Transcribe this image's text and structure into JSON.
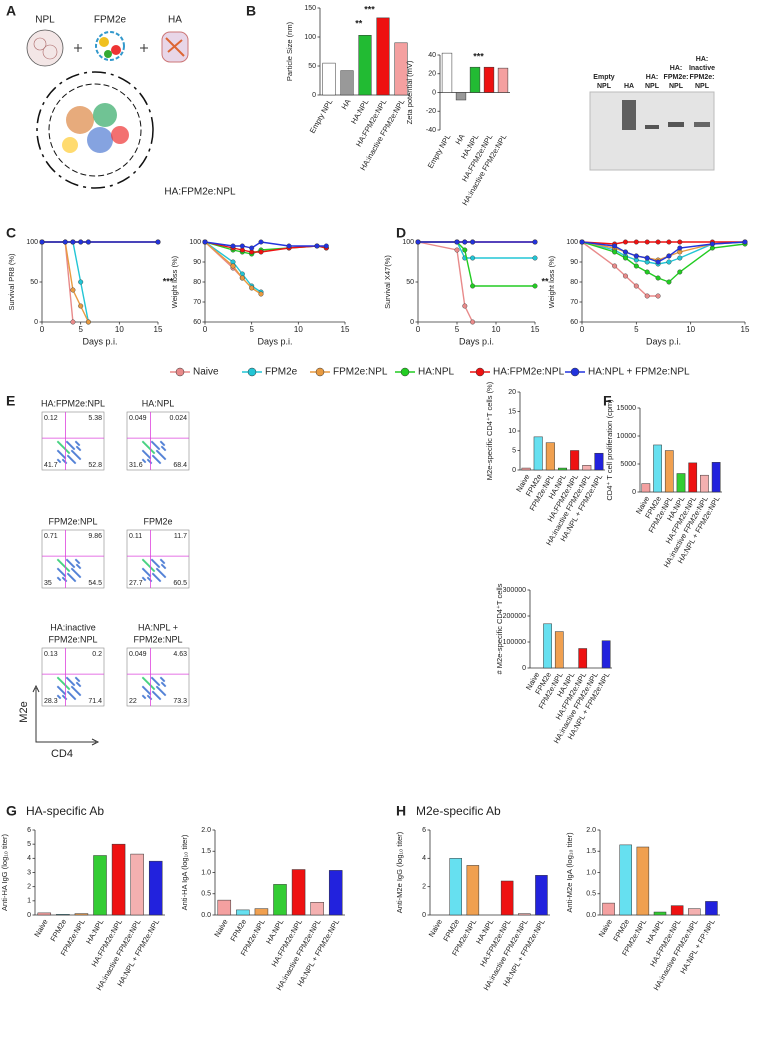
{
  "panel_letters": [
    "A",
    "B",
    "C",
    "D",
    "E",
    "F",
    "G",
    "H"
  ],
  "section_titles": [
    "HA-specific Ab",
    "M2e-specific Ab"
  ],
  "panel_a": {
    "labels": [
      "NPL",
      "FPM2e",
      "HA"
    ],
    "complex": "HA:FPM2e:NPL"
  },
  "gel_labels": [
    [
      "Empty",
      "NPL"
    ],
    [
      "HA"
    ],
    [
      "HA:",
      "NPL"
    ],
    [
      "HA:",
      "FPM2e:",
      "NPL"
    ],
    [
      "HA:",
      "Inactive",
      "FPM2e:",
      "NPL"
    ]
  ],
  "flow_axes": {
    "y": "M2e",
    "x": "CD4"
  },
  "flow_plots": [
    {
      "title": [
        "HA:FPM2e:NPL"
      ],
      "quadrants": [
        0.12,
        5.38,
        41.7,
        52.8
      ]
    },
    {
      "title": [
        "HA:NPL"
      ],
      "quadrants": [
        0.049,
        0.024,
        31.6,
        68.4
      ]
    },
    {
      "title": [
        "FPM2e:NPL"
      ],
      "quadrants": [
        0.71,
        9.86,
        35,
        54.5
      ]
    },
    {
      "title": [
        "FPM2e"
      ],
      "quadrants": [
        0.11,
        11.7,
        27.7,
        60.5
      ]
    },
    {
      "title": [
        "HA:inactive",
        "FPM2e:NPL"
      ],
      "quadrants": [
        0.13,
        0.2,
        28.3,
        71.4
      ]
    },
    {
      "title": [
        "HA:NPL +",
        "FPM2e:NPL"
      ],
      "quadrants": [
        0.049,
        4.63,
        22,
        73.3
      ]
    }
  ],
  "chart_data": [
    {
      "type": "bar",
      "y_label": "Particle Size (nm)",
      "categories": [
        "Empty NPL",
        "HA",
        "HA:NPL",
        "HA:FPM2e:NPL",
        "HA:inactive FPM2e:NPL"
      ],
      "values": [
        55,
        42,
        103,
        133,
        90
      ],
      "colors": [
        "#ffffff",
        "#999999",
        "#22bb33",
        "#ee1111",
        "#f4a0a0"
      ],
      "ylim": [
        0,
        150
      ],
      "yticks": [
        0,
        50,
        100,
        150
      ],
      "annotations": [
        "***",
        "**"
      ]
    },
    {
      "type": "bar",
      "y_label": "Zeta potential (mV)",
      "categories": [
        "Empty NPL",
        "HA",
        "HA:NPL",
        "HA:FPM2e:NPL",
        "HA:inactive FPM2e:NPL"
      ],
      "values": [
        42,
        -8,
        27,
        27,
        26
      ],
      "colors": [
        "#ffffff",
        "#999999",
        "#22bb33",
        "#ee1111",
        "#f4a0a0"
      ],
      "ylim": [
        -40,
        40
      ],
      "yticks": [
        -40,
        -20,
        0,
        20,
        40
      ],
      "annotations": [
        "***"
      ]
    },
    {
      "type": "line",
      "y_label": "Survival PR8 (%)",
      "x_label": "Days p.i.",
      "x": [
        0,
        3,
        4,
        5,
        6,
        15
      ],
      "xlim": [
        0,
        15
      ],
      "xticks": [
        0,
        5,
        10,
        15
      ],
      "ylim": [
        0,
        100
      ],
      "yticks": [
        0,
        50,
        100
      ],
      "annotations": [
        "***"
      ],
      "series": [
        {
          "name": "Naive",
          "color": "#e88a8a",
          "values": [
            100,
            100,
            0,
            null,
            null,
            null
          ]
        },
        {
          "name": "FPM2e",
          "color": "#22c5d5",
          "values": [
            100,
            100,
            100,
            50,
            0,
            null
          ]
        },
        {
          "name": "FPM2e:NPL",
          "color": "#e89a40",
          "values": [
            100,
            100,
            40,
            20,
            0,
            null
          ]
        },
        {
          "name": "HA:NPL",
          "color": "#22cc22",
          "values": [
            100,
            100,
            100,
            100,
            100,
            100
          ]
        },
        {
          "name": "HA:FPM2e:NPL",
          "color": "#ee1111",
          "values": [
            100,
            100,
            100,
            100,
            100,
            100
          ]
        },
        {
          "name": "HA:NPL + FPM2e:NPL",
          "color": "#2233dd",
          "values": [
            100,
            100,
            100,
            100,
            100,
            100
          ]
        }
      ]
    },
    {
      "type": "line",
      "y_label": "Weight loss (%)",
      "x_label": "Days p.i.",
      "x": [
        0,
        3,
        4,
        5,
        6,
        9,
        12,
        13
      ],
      "xlim": [
        0,
        15
      ],
      "xticks": [
        0,
        5,
        10,
        15
      ],
      "ylim": [
        60,
        100
      ],
      "yticks": [
        60,
        70,
        80,
        90,
        100
      ],
      "series": [
        {
          "color": "#e88a8a",
          "values": [
            100,
            87,
            82,
            null,
            null,
            null,
            null,
            null
          ]
        },
        {
          "color": "#22c5d5",
          "values": [
            100,
            90,
            84,
            78,
            75,
            null,
            null,
            null
          ]
        },
        {
          "color": "#e89a40",
          "values": [
            100,
            88,
            82,
            77,
            74,
            null,
            null,
            null
          ]
        },
        {
          "color": "#22cc22",
          "values": [
            100,
            96,
            95,
            94,
            96,
            97,
            98,
            97
          ]
        },
        {
          "color": "#ee1111",
          "values": [
            100,
            97,
            96,
            95,
            95,
            97,
            98,
            97
          ]
        },
        {
          "color": "#2233dd",
          "values": [
            100,
            98,
            98,
            97,
            100,
            98,
            98,
            98
          ]
        }
      ]
    },
    {
      "type": "line",
      "y_label": "Survival X47(%)",
      "x_label": "Days p.i.",
      "x": [
        0,
        5,
        6,
        7,
        15
      ],
      "xlim": [
        0,
        15
      ],
      "xticks": [
        0,
        5,
        10,
        15
      ],
      "ylim": [
        0,
        100
      ],
      "yticks": [
        0,
        50,
        100
      ],
      "annotations": [
        "**"
      ],
      "series": [
        {
          "color": "#e88a8a",
          "values": [
            100,
            90,
            20,
            0,
            null
          ]
        },
        {
          "color": "#22c5d5",
          "values": [
            100,
            100,
            80,
            80,
            80
          ]
        },
        {
          "color": "#e89a40",
          "values": [
            100,
            100,
            100,
            100,
            100
          ]
        },
        {
          "color": "#22cc22",
          "values": [
            100,
            100,
            90,
            45,
            45
          ]
        },
        {
          "color": "#ee1111",
          "values": [
            100,
            100,
            100,
            100,
            100
          ]
        },
        {
          "color": "#2233dd",
          "values": [
            100,
            100,
            100,
            100,
            100
          ]
        }
      ]
    },
    {
      "type": "line",
      "y_label": "Weight loss (%)",
      "x_label": "Days p.i.",
      "x": [
        0,
        3,
        4,
        5,
        6,
        7,
        8,
        9,
        12,
        15
      ],
      "xlim": [
        0,
        15
      ],
      "xticks": [
        0,
        5,
        10,
        15
      ],
      "ylim": [
        60,
        100
      ],
      "yticks": [
        60,
        70,
        80,
        90,
        100
      ],
      "series": [
        {
          "color": "#e88a8a",
          "values": [
            100,
            88,
            83,
            78,
            73,
            73,
            null,
            null,
            null,
            null
          ]
        },
        {
          "color": "#22c5d5",
          "values": [
            100,
            96,
            93,
            91,
            90,
            89,
            90,
            92,
            99,
            100
          ]
        },
        {
          "color": "#e89a40",
          "values": [
            100,
            97,
            95,
            93,
            92,
            91,
            93,
            95,
            99,
            100
          ]
        },
        {
          "color": "#22cc22",
          "values": [
            100,
            95,
            92,
            88,
            85,
            82,
            80,
            85,
            97,
            99
          ]
        },
        {
          "color": "#ee1111",
          "values": [
            100,
            99,
            100,
            100,
            100,
            100,
            100,
            100,
            100,
            100
          ]
        },
        {
          "color": "#2233dd",
          "values": [
            100,
            98,
            95,
            93,
            92,
            90,
            93,
            97,
            99,
            100
          ]
        }
      ]
    },
    {
      "type": "bar",
      "y_label": "M2e-specific CD4⁺T cells (%)",
      "categories": [
        "Naive",
        "FPM2e",
        "FPM2e:NPL",
        "HA:NPL",
        "HA:FPM2e:NPL",
        "HA:inactive FPM2e:NPL",
        "HA:NPL + FPM2e:NPL"
      ],
      "values": [
        0.5,
        8.5,
        7,
        0.5,
        5,
        1.2,
        4.3
      ],
      "colors": [
        "#f4a0a0",
        "#66e0f0",
        "#f0a050",
        "#33cc33",
        "#ee1111",
        "#f4b0b0",
        "#2222dd"
      ],
      "ylim": [
        0,
        20
      ],
      "yticks": [
        0,
        5,
        10,
        15,
        20
      ]
    },
    {
      "type": "bar",
      "y_label": "# M2e-specific CD4⁺T cells",
      "categories": [
        "Naive",
        "FPM2e",
        "FPM2e:NPL",
        "HA:NPL",
        "HA:FPM2e:NPL",
        "HA:inactive FPM2e:NPL",
        "HA:NPL + FPM2e:NPL"
      ],
      "values": [
        0,
        170000,
        140000,
        0,
        75000,
        0,
        105000
      ],
      "colors": [
        "#f4a0a0",
        "#66e0f0",
        "#f0a050",
        "#33cc33",
        "#ee1111",
        "#f4b0b0",
        "#2222dd"
      ],
      "ylim": [
        0,
        300000
      ],
      "yticks": [
        0,
        100000,
        200000,
        300000
      ]
    },
    {
      "type": "bar",
      "y_label": "CD4⁺ T cell proliferation (cpm)",
      "categories": [
        "Naive",
        "FPM2e",
        "FPM2e:NPL",
        "HA:NPL",
        "HA:FPM2e:NPL",
        "HA:inactive FPM2e:NPL",
        "HA:NPL + FPM2e:NPL"
      ],
      "values": [
        1500,
        8400,
        7400,
        3300,
        5200,
        3000,
        5300
      ],
      "colors": [
        "#f4a0a0",
        "#66e0f0",
        "#f0a050",
        "#33cc33",
        "#ee1111",
        "#f4b0b0",
        "#2222dd"
      ],
      "ylim": [
        0,
        15000
      ],
      "yticks": [
        0,
        5000,
        10000,
        15000
      ]
    },
    {
      "type": "bar",
      "y_label": "Anti-HA IgG (log₁₀ titer)",
      "categories": [
        "Naive",
        "FPM2e",
        "FPM2e:NPL",
        "HA:NPL",
        "HA:FPM2e:NPL",
        "HA:inactive FPM2e:NPL",
        "HA:NPL + FPM2e:NPL"
      ],
      "values": [
        0.15,
        0.05,
        0.1,
        4.2,
        5,
        4.3,
        3.8
      ],
      "colors": [
        "#f4a0a0",
        "#66e0f0",
        "#f0a050",
        "#33cc33",
        "#ee1111",
        "#f4b0b0",
        "#2222dd"
      ],
      "ylim": [
        0,
        6
      ],
      "yticks": [
        0,
        1,
        2,
        3,
        4,
        5,
        6
      ]
    },
    {
      "type": "bar",
      "y_label": "Anti-HA IgA (log₁₀ titer)",
      "categories": [
        "Naive",
        "FPM2e",
        "FPM2e:NPL",
        "HA:NPL",
        "HA:FPM2e:NPL",
        "HA:inactive FPM2e:NPL",
        "HA:NPL + FPM2e:NPL"
      ],
      "values": [
        0.35,
        0.12,
        0.15,
        0.72,
        1.07,
        0.3,
        1.05
      ],
      "colors": [
        "#f4a0a0",
        "#66e0f0",
        "#f0a050",
        "#33cc33",
        "#ee1111",
        "#f4b0b0",
        "#2222dd"
      ],
      "ylim": [
        0,
        2
      ],
      "yticks": [
        {
          "value": 0,
          "label": "0.0"
        },
        {
          "value": 0.5,
          "label": "0.5"
        },
        {
          "value": 1,
          "label": "1.0"
        },
        {
          "value": 1.5,
          "label": "1.5"
        },
        {
          "value": 2,
          "label": "2.0"
        }
      ]
    },
    {
      "type": "bar",
      "y_label": "Anti-M2e IgG (log₁₀ titer)",
      "categories": [
        "Naive",
        "FPM2e",
        "FPM2e:NPL",
        "HA:NPL",
        "HA:FPM2e:NPL",
        "HA:inactive FPM2e:NPL",
        "HA:NPL + FPM2e:NPL"
      ],
      "values": [
        0,
        4,
        3.5,
        0,
        2.4,
        0.1,
        2.8
      ],
      "colors": [
        "#f4a0a0",
        "#66e0f0",
        "#f0a050",
        "#33cc33",
        "#ee1111",
        "#f4b0b0",
        "#2222dd"
      ],
      "ylim": [
        0,
        6
      ],
      "yticks": [
        0,
        2,
        4,
        6
      ]
    },
    {
      "type": "bar",
      "y_label": "Anti-M2e IgA (log₁₀ titer)",
      "categories": [
        "Naive",
        "FPM2e",
        "FPM2e:NPL",
        "HA:NPL",
        "HA:FPM2e:NPL",
        "HA:inactive FPM2e:NPL",
        "HA:NPL + FP:NPL"
      ],
      "values": [
        0.28,
        1.65,
        1.6,
        0.07,
        0.22,
        0.15,
        0.32
      ],
      "colors": [
        "#f4a0a0",
        "#66e0f0",
        "#f0a050",
        "#33cc33",
        "#ee1111",
        "#f4b0b0",
        "#2222dd"
      ],
      "ylim": [
        0,
        2
      ],
      "yticks": [
        {
          "value": 0,
          "label": "0.0"
        },
        {
          "value": 0.5,
          "label": "0.5"
        },
        {
          "value": 1,
          "label": "1.0"
        },
        {
          "value": 1.5,
          "label": "1.5"
        },
        {
          "value": 2,
          "label": "2.0"
        }
      ]
    }
  ]
}
